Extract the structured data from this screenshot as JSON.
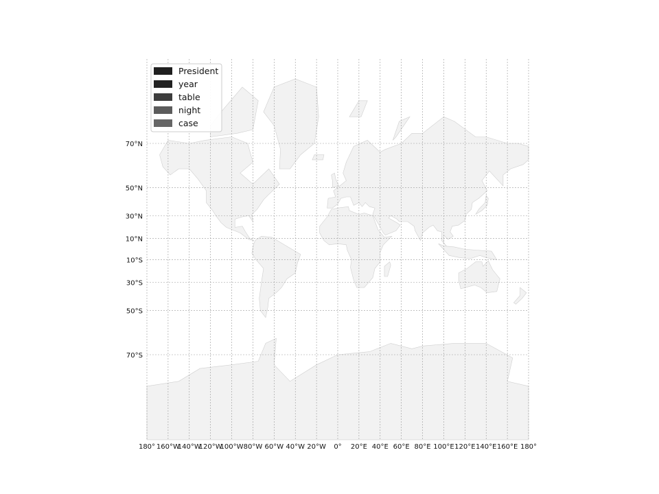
{
  "map": {
    "projection": "mercator",
    "lat_gridlines": [
      {
        "lat": 70,
        "label": "70°N"
      },
      {
        "lat": 50,
        "label": "50°N"
      },
      {
        "lat": 30,
        "label": "30°N"
      },
      {
        "lat": 10,
        "label": "10°N"
      },
      {
        "lat": -10,
        "label": "10°S"
      },
      {
        "lat": -30,
        "label": "30°S"
      },
      {
        "lat": -50,
        "label": "50°S"
      },
      {
        "lat": -70,
        "label": "70°S"
      }
    ],
    "lon_gridlines": [
      {
        "lon": -180,
        "label": "180°"
      },
      {
        "lon": -160,
        "label": "160°W"
      },
      {
        "lon": -140,
        "label": "140°W"
      },
      {
        "lon": -120,
        "label": "120°W"
      },
      {
        "lon": -100,
        "label": "100°W"
      },
      {
        "lon": -80,
        "label": "80°W"
      },
      {
        "lon": -60,
        "label": "60°W"
      },
      {
        "lon": -40,
        "label": "40°W"
      },
      {
        "lon": -20,
        "label": "20°W"
      },
      {
        "lon": 0,
        "label": "0°"
      },
      {
        "lon": 20,
        "label": "20°E"
      },
      {
        "lon": 40,
        "label": "40°E"
      },
      {
        "lon": 60,
        "label": "60°E"
      },
      {
        "lon": 80,
        "label": "80°E"
      },
      {
        "lon": 100,
        "label": "100°E"
      },
      {
        "lon": 120,
        "label": "120°E"
      },
      {
        "lon": 140,
        "label": "140°E"
      },
      {
        "lon": 160,
        "label": "160°E"
      },
      {
        "lon": 180,
        "label": "180°"
      }
    ],
    "land_color": "#f2f2f2",
    "border_color": "#cfcfcf",
    "grid_color": "#999999",
    "legend": {
      "placement": "top-left",
      "entries": [
        {
          "label": "President",
          "color": "#1f1f1f"
        },
        {
          "label": "year",
          "color": "#222222"
        },
        {
          "label": "table",
          "color": "#3d3d3d"
        },
        {
          "label": "night",
          "color": "#5c5c5c"
        },
        {
          "label": "case",
          "color": "#666666"
        }
      ]
    }
  }
}
